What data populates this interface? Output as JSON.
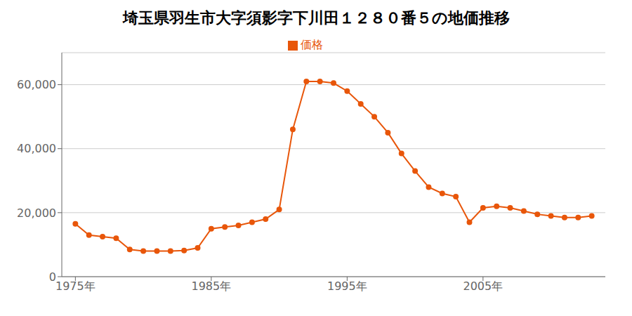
{
  "chart_data": {
    "type": "line",
    "title": "埼玉県羽生市大字須影字下川田１２８０番５の地価推移",
    "x": [
      1975,
      1976,
      1977,
      1978,
      1979,
      1980,
      1981,
      1982,
      1983,
      1984,
      1985,
      1986,
      1987,
      1988,
      1989,
      1990,
      1991,
      1992,
      1993,
      1994,
      1995,
      1996,
      1997,
      1998,
      1999,
      2000,
      2001,
      2002,
      2003,
      2004,
      2005,
      2006,
      2007,
      2008,
      2009,
      2010,
      2011,
      2012,
      2013
    ],
    "series": [
      {
        "name": "価格",
        "color": "#E8560A",
        "marker": "circle",
        "values": [
          16500,
          13000,
          12500,
          12000,
          8500,
          8000,
          8000,
          8000,
          8200,
          9000,
          15000,
          15500,
          16000,
          17000,
          18000,
          21000,
          46000,
          61000,
          61000,
          60500,
          58000,
          54000,
          50000,
          45000,
          38500,
          33000,
          28000,
          26000,
          25000,
          17000,
          21500,
          22000,
          21500,
          20500,
          19500,
          19000,
          18500,
          18500,
          19000
        ]
      }
    ],
    "xlim": [
      1974,
      2014
    ],
    "xticks": [
      {
        "value": 1975,
        "label": "1975年"
      },
      {
        "value": 1985,
        "label": "1985年"
      },
      {
        "value": 1995,
        "label": "1995年"
      },
      {
        "value": 2005,
        "label": "2005年"
      }
    ],
    "ylim": [
      0,
      70000
    ],
    "yticks": [
      0,
      {
        "value": 20000,
        "label": "20,000"
      },
      {
        "value": 40000,
        "label": "40,000"
      },
      {
        "value": 60000,
        "label": "60,000"
      }
    ],
    "grid": "y",
    "legend": "top"
  }
}
